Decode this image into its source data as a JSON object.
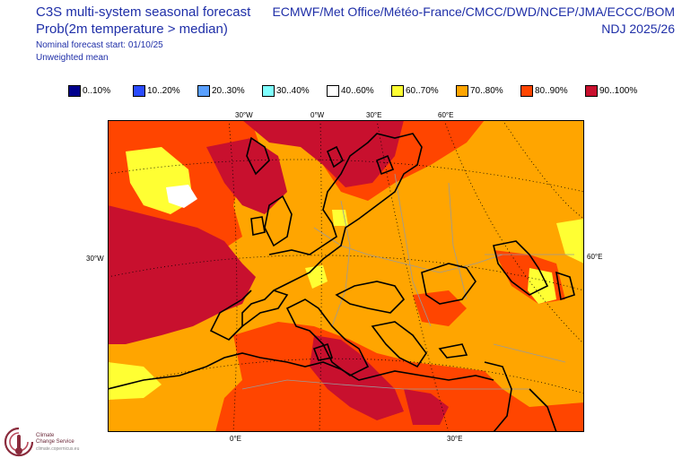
{
  "header": {
    "line1": "C3S multi-system seasonal forecast",
    "line2": "Prob(2m temperature > median)",
    "line3": "Nominal forecast start: 01/10/25",
    "line4": "Unweighted mean",
    "systems": "ECMWF/Met Office/Météo-France/CMCC/DWD/NCEP/JMA/ECCC/BOM",
    "season": "NDJ 2025/26"
  },
  "legend": [
    {
      "label": "0..10%",
      "color": "#00008c"
    },
    {
      "label": "10..20%",
      "color": "#2a4bff"
    },
    {
      "label": "20..30%",
      "color": "#5aa0ff"
    },
    {
      "label": "30..40%",
      "color": "#80ffff"
    },
    {
      "label": "40..60%",
      "color": "#ffffff"
    },
    {
      "label": "60..70%",
      "color": "#ffff33"
    },
    {
      "label": "70..80%",
      "color": "#ffa500"
    },
    {
      "label": "80..90%",
      "color": "#ff4500"
    },
    {
      "label": "90..100%",
      "color": "#c8102e"
    }
  ],
  "axes": {
    "top_ticks": [
      "30°W",
      "0°W",
      "30°E",
      "60°E"
    ],
    "bottom_ticks": [
      "0°E",
      "30°E"
    ],
    "left_tick": "30°W",
    "right_tick": "60°E"
  },
  "logo": {
    "line1": "Climate",
    "line2": "Change Service",
    "line3": "climate.copernicus.eu",
    "icon": "thermometer-globe-icon"
  }
}
